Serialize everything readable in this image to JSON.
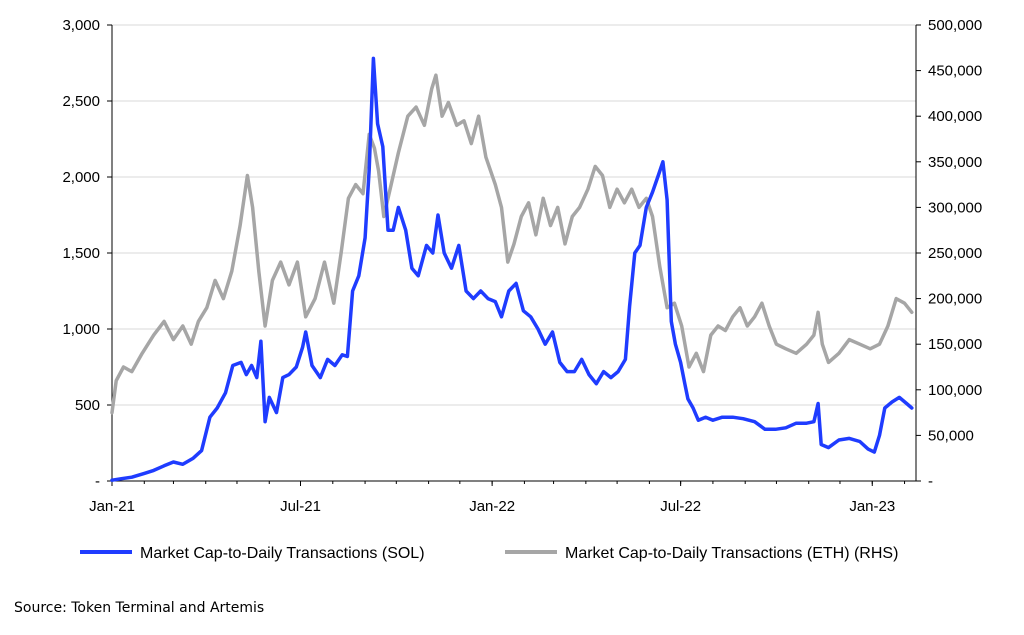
{
  "chart_data": {
    "type": "line",
    "title": "",
    "xlabel": "",
    "ylabel": "",
    "x_ticks": [
      "Jan-21",
      "Jul-21",
      "Jan-22",
      "Jul-22",
      "Jan-23"
    ],
    "x_range": [
      "Jan-21",
      "Mar-23"
    ],
    "y_left": {
      "ticks": [
        "-",
        "500",
        "1,000",
        "1,500",
        "2,000",
        "2,500",
        "3,000"
      ],
      "range": [
        0,
        3000
      ]
    },
    "y_right": {
      "ticks": [
        "-",
        "50,000",
        "100,000",
        "150,000",
        "200,000",
        "250,000",
        "300,000",
        "350,000",
        "400,000",
        "450,000",
        "500,000"
      ],
      "range": [
        0,
        500000
      ]
    },
    "grid": "horizontal",
    "legend_position": "bottom",
    "series": [
      {
        "name": "Market Cap-to-Daily Transactions (SOL)",
        "axis": "left",
        "color": "#1f3cff",
        "points": [
          [
            "2021-01-01",
            5
          ],
          [
            "2021-01-10",
            15
          ],
          [
            "2021-01-20",
            25
          ],
          [
            "2021-02-01",
            50
          ],
          [
            "2021-02-10",
            70
          ],
          [
            "2021-02-20",
            100
          ],
          [
            "2021-03-01",
            125
          ],
          [
            "2021-03-10",
            110
          ],
          [
            "2021-03-20",
            150
          ],
          [
            "2021-03-28",
            200
          ],
          [
            "2021-04-05",
            420
          ],
          [
            "2021-04-12",
            480
          ],
          [
            "2021-04-20",
            580
          ],
          [
            "2021-04-27",
            760
          ],
          [
            "2021-05-05",
            780
          ],
          [
            "2021-05-10",
            700
          ],
          [
            "2021-05-15",
            760
          ],
          [
            "2021-05-20",
            680
          ],
          [
            "2021-05-24",
            920
          ],
          [
            "2021-05-28",
            390
          ],
          [
            "2021-06-01",
            550
          ],
          [
            "2021-06-08",
            450
          ],
          [
            "2021-06-14",
            680
          ],
          [
            "2021-06-20",
            700
          ],
          [
            "2021-06-27",
            750
          ],
          [
            "2021-07-03",
            880
          ],
          [
            "2021-07-06",
            980
          ],
          [
            "2021-07-12",
            760
          ],
          [
            "2021-07-20",
            680
          ],
          [
            "2021-07-27",
            800
          ],
          [
            "2021-08-03",
            760
          ],
          [
            "2021-08-10",
            830
          ],
          [
            "2021-08-15",
            820
          ],
          [
            "2021-08-20",
            1250
          ],
          [
            "2021-08-26",
            1350
          ],
          [
            "2021-09-01",
            1600
          ],
          [
            "2021-09-05",
            2050
          ],
          [
            "2021-09-09",
            2780
          ],
          [
            "2021-09-13",
            2350
          ],
          [
            "2021-09-18",
            2200
          ],
          [
            "2021-09-23",
            1650
          ],
          [
            "2021-09-28",
            1650
          ],
          [
            "2021-10-03",
            1800
          ],
          [
            "2021-10-10",
            1650
          ],
          [
            "2021-10-16",
            1400
          ],
          [
            "2021-10-22",
            1350
          ],
          [
            "2021-10-30",
            1550
          ],
          [
            "2021-11-05",
            1500
          ],
          [
            "2021-11-10",
            1750
          ],
          [
            "2021-11-16",
            1500
          ],
          [
            "2021-11-23",
            1400
          ],
          [
            "2021-11-30",
            1550
          ],
          [
            "2021-12-07",
            1250
          ],
          [
            "2021-12-14",
            1200
          ],
          [
            "2021-12-21",
            1250
          ],
          [
            "2021-12-28",
            1200
          ],
          [
            "2022-01-04",
            1180
          ],
          [
            "2022-01-10",
            1080
          ],
          [
            "2022-01-17",
            1250
          ],
          [
            "2022-01-24",
            1300
          ],
          [
            "2022-01-31",
            1120
          ],
          [
            "2022-02-07",
            1080
          ],
          [
            "2022-02-14",
            1000
          ],
          [
            "2022-02-21",
            900
          ],
          [
            "2022-02-28",
            980
          ],
          [
            "2022-03-07",
            780
          ],
          [
            "2022-03-14",
            720
          ],
          [
            "2022-03-21",
            720
          ],
          [
            "2022-03-28",
            800
          ],
          [
            "2022-04-04",
            700
          ],
          [
            "2022-04-11",
            640
          ],
          [
            "2022-04-18",
            720
          ],
          [
            "2022-04-25",
            680
          ],
          [
            "2022-05-02",
            720
          ],
          [
            "2022-05-09",
            800
          ],
          [
            "2022-05-13",
            1150
          ],
          [
            "2022-05-18",
            1500
          ],
          [
            "2022-05-23",
            1550
          ],
          [
            "2022-05-29",
            1800
          ],
          [
            "2022-06-04",
            1900
          ],
          [
            "2022-06-10",
            2020
          ],
          [
            "2022-06-14",
            2100
          ],
          [
            "2022-06-18",
            1850
          ],
          [
            "2022-06-22",
            1050
          ],
          [
            "2022-06-26",
            900
          ],
          [
            "2022-07-01",
            780
          ],
          [
            "2022-07-05",
            640
          ],
          [
            "2022-07-08",
            540
          ],
          [
            "2022-07-13",
            480
          ],
          [
            "2022-07-18",
            400
          ],
          [
            "2022-07-25",
            420
          ],
          [
            "2022-08-01",
            400
          ],
          [
            "2022-08-10",
            420
          ],
          [
            "2022-08-20",
            420
          ],
          [
            "2022-08-30",
            410
          ],
          [
            "2022-09-10",
            390
          ],
          [
            "2022-09-20",
            340
          ],
          [
            "2022-09-30",
            340
          ],
          [
            "2022-10-10",
            350
          ],
          [
            "2022-10-20",
            380
          ],
          [
            "2022-10-30",
            380
          ],
          [
            "2022-11-06",
            390
          ],
          [
            "2022-11-10",
            510
          ],
          [
            "2022-11-13",
            240
          ],
          [
            "2022-11-20",
            220
          ],
          [
            "2022-11-30",
            270
          ],
          [
            "2022-12-10",
            280
          ],
          [
            "2022-12-20",
            260
          ],
          [
            "2022-12-28",
            210
          ],
          [
            "2023-01-03",
            190
          ],
          [
            "2023-01-08",
            300
          ],
          [
            "2023-01-13",
            480
          ],
          [
            "2023-01-20",
            520
          ],
          [
            "2023-01-27",
            550
          ],
          [
            "2023-02-03",
            510
          ],
          [
            "2023-02-08",
            480
          ]
        ]
      },
      {
        "name": "Market Cap-to-Daily Transactions (ETH) (RHS)",
        "axis": "right",
        "color": "#a6a6a6",
        "points": [
          [
            "2021-01-01",
            75000
          ],
          [
            "2021-01-05",
            110000
          ],
          [
            "2021-01-12",
            125000
          ],
          [
            "2021-01-20",
            120000
          ],
          [
            "2021-01-30",
            140000
          ],
          [
            "2021-02-10",
            160000
          ],
          [
            "2021-02-20",
            175000
          ],
          [
            "2021-03-01",
            155000
          ],
          [
            "2021-03-10",
            170000
          ],
          [
            "2021-03-18",
            150000
          ],
          [
            "2021-03-25",
            175000
          ],
          [
            "2021-04-02",
            190000
          ],
          [
            "2021-04-10",
            220000
          ],
          [
            "2021-04-18",
            200000
          ],
          [
            "2021-04-26",
            230000
          ],
          [
            "2021-05-04",
            280000
          ],
          [
            "2021-05-11",
            335000
          ],
          [
            "2021-05-16",
            300000
          ],
          [
            "2021-05-22",
            230000
          ],
          [
            "2021-05-28",
            170000
          ],
          [
            "2021-06-04",
            220000
          ],
          [
            "2021-06-12",
            240000
          ],
          [
            "2021-06-20",
            215000
          ],
          [
            "2021-06-28",
            240000
          ],
          [
            "2021-07-06",
            180000
          ],
          [
            "2021-07-15",
            200000
          ],
          [
            "2021-07-24",
            240000
          ],
          [
            "2021-08-02",
            195000
          ],
          [
            "2021-08-09",
            250000
          ],
          [
            "2021-08-16",
            310000
          ],
          [
            "2021-08-23",
            325000
          ],
          [
            "2021-08-30",
            315000
          ],
          [
            "2021-09-05",
            380000
          ],
          [
            "2021-09-10",
            365000
          ],
          [
            "2021-09-14",
            340000
          ],
          [
            "2021-09-19",
            290000
          ],
          [
            "2021-09-25",
            320000
          ],
          [
            "2021-10-03",
            360000
          ],
          [
            "2021-10-12",
            400000
          ],
          [
            "2021-10-20",
            410000
          ],
          [
            "2021-10-28",
            390000
          ],
          [
            "2021-11-04",
            430000
          ],
          [
            "2021-11-08",
            445000
          ],
          [
            "2021-11-14",
            400000
          ],
          [
            "2021-11-20",
            415000
          ],
          [
            "2021-11-28",
            390000
          ],
          [
            "2021-12-05",
            395000
          ],
          [
            "2021-12-12",
            370000
          ],
          [
            "2021-12-19",
            400000
          ],
          [
            "2021-12-26",
            355000
          ],
          [
            "2022-01-04",
            325000
          ],
          [
            "2022-01-10",
            300000
          ],
          [
            "2022-01-16",
            240000
          ],
          [
            "2022-01-22",
            260000
          ],
          [
            "2022-01-29",
            290000
          ],
          [
            "2022-02-05",
            305000
          ],
          [
            "2022-02-12",
            270000
          ],
          [
            "2022-02-19",
            310000
          ],
          [
            "2022-02-26",
            280000
          ],
          [
            "2022-03-05",
            300000
          ],
          [
            "2022-03-12",
            260000
          ],
          [
            "2022-03-19",
            290000
          ],
          [
            "2022-03-26",
            300000
          ],
          [
            "2022-04-03",
            320000
          ],
          [
            "2022-04-10",
            345000
          ],
          [
            "2022-04-17",
            335000
          ],
          [
            "2022-04-24",
            300000
          ],
          [
            "2022-05-01",
            320000
          ],
          [
            "2022-05-08",
            305000
          ],
          [
            "2022-05-15",
            320000
          ],
          [
            "2022-05-22",
            300000
          ],
          [
            "2022-05-29",
            310000
          ],
          [
            "2022-06-04",
            290000
          ],
          [
            "2022-06-11",
            235000
          ],
          [
            "2022-06-18",
            190000
          ],
          [
            "2022-06-25",
            195000
          ],
          [
            "2022-07-02",
            170000
          ],
          [
            "2022-07-09",
            125000
          ],
          [
            "2022-07-16",
            140000
          ],
          [
            "2022-07-23",
            120000
          ],
          [
            "2022-07-30",
            160000
          ],
          [
            "2022-08-06",
            170000
          ],
          [
            "2022-08-13",
            165000
          ],
          [
            "2022-08-20",
            180000
          ],
          [
            "2022-08-27",
            190000
          ],
          [
            "2022-09-03",
            170000
          ],
          [
            "2022-09-10",
            180000
          ],
          [
            "2022-09-17",
            195000
          ],
          [
            "2022-09-24",
            170000
          ],
          [
            "2022-10-01",
            150000
          ],
          [
            "2022-10-10",
            145000
          ],
          [
            "2022-10-20",
            140000
          ],
          [
            "2022-10-30",
            150000
          ],
          [
            "2022-11-06",
            160000
          ],
          [
            "2022-11-10",
            185000
          ],
          [
            "2022-11-14",
            150000
          ],
          [
            "2022-11-20",
            130000
          ],
          [
            "2022-11-30",
            140000
          ],
          [
            "2022-12-10",
            155000
          ],
          [
            "2022-12-20",
            150000
          ],
          [
            "2022-12-30",
            145000
          ],
          [
            "2023-01-08",
            150000
          ],
          [
            "2023-01-16",
            170000
          ],
          [
            "2023-01-24",
            200000
          ],
          [
            "2023-02-01",
            195000
          ],
          [
            "2023-02-08",
            185000
          ]
        ]
      }
    ]
  },
  "source_text": "Source: Token Terminal and Artemis"
}
